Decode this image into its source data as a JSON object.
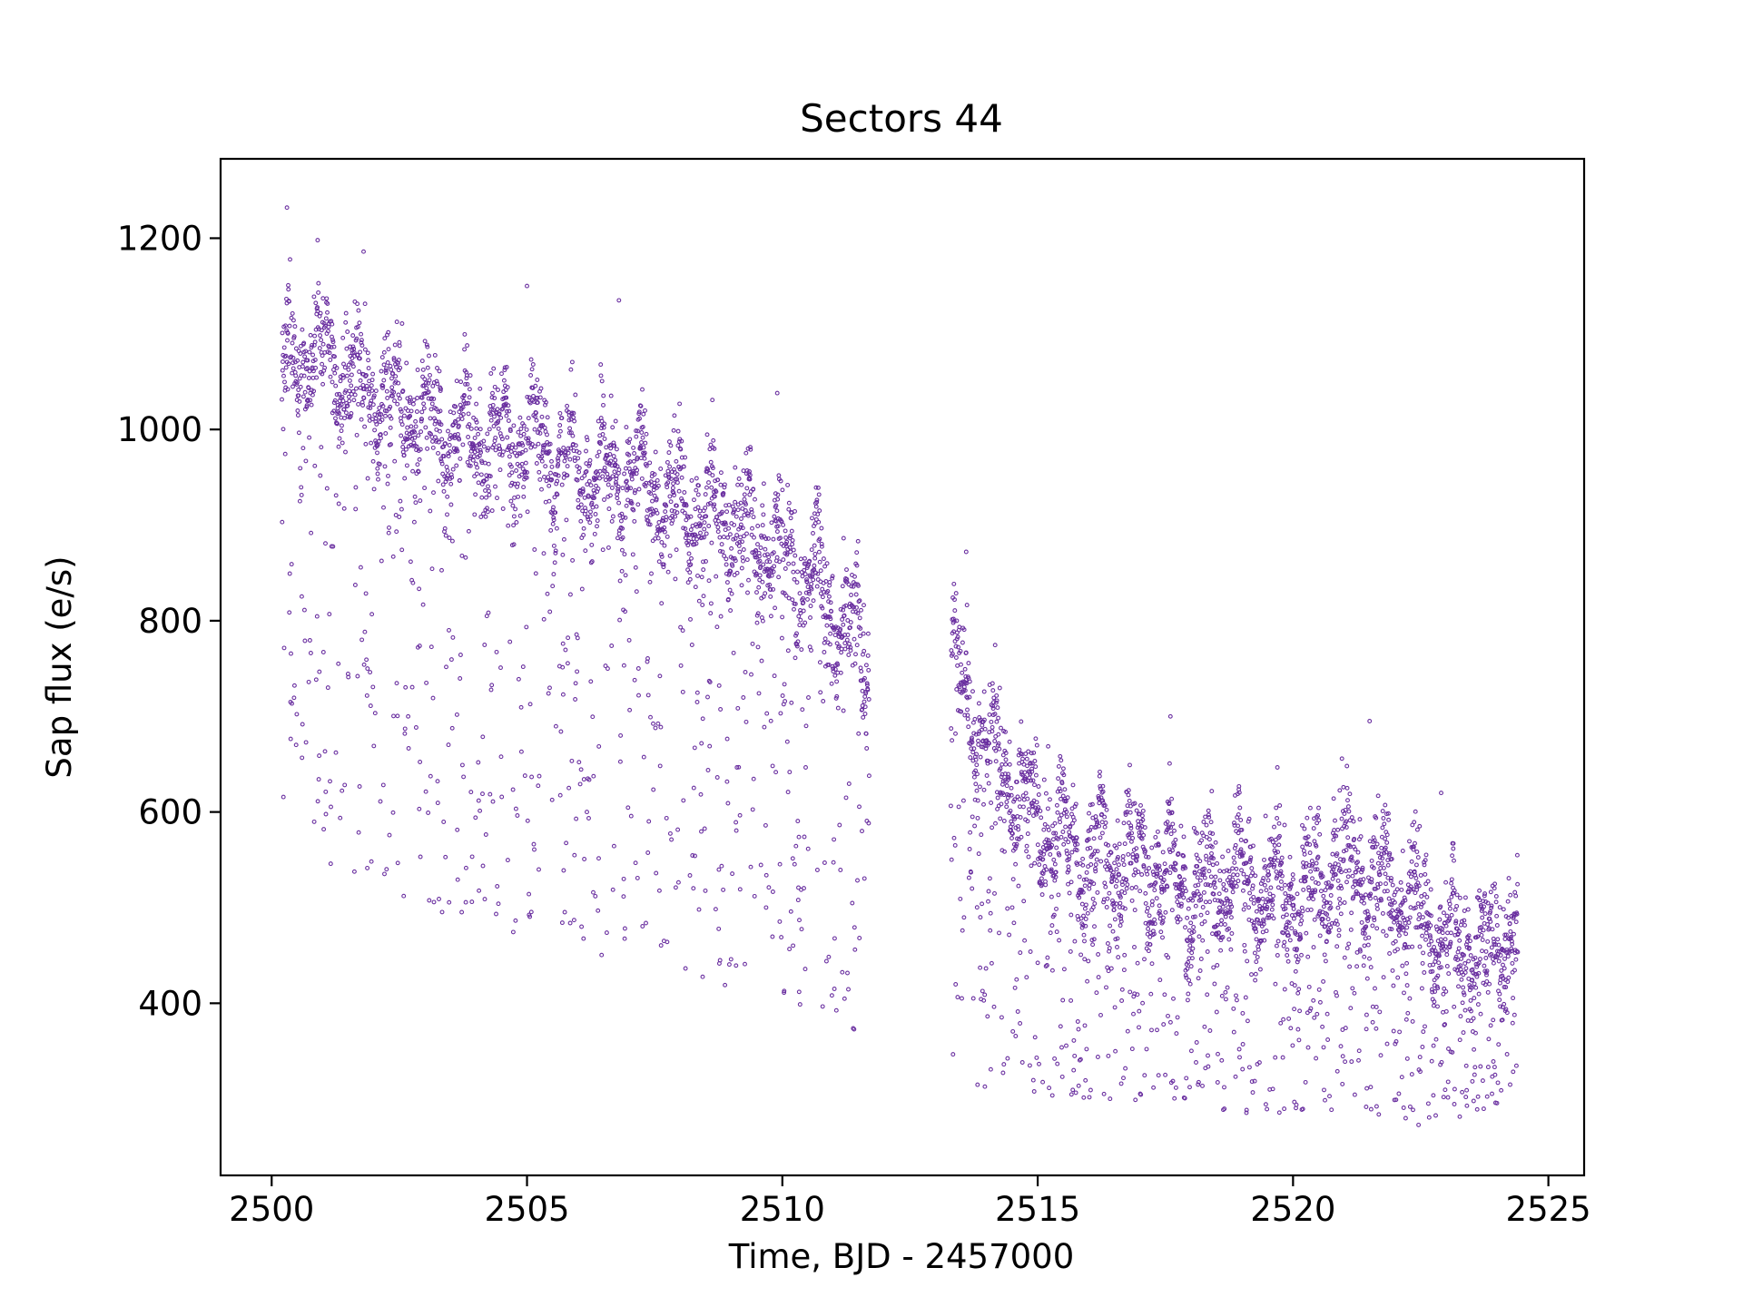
{
  "chart_data": {
    "type": "scatter",
    "title": "Sectors 44",
    "xlabel": "Time, BJD - 2457000",
    "ylabel": "Sap flux (e/s)",
    "xlim": [
      2499.0,
      2525.7
    ],
    "ylim": [
      220,
      1283
    ],
    "xticks": [
      2500,
      2505,
      2510,
      2515,
      2520,
      2525
    ],
    "yticks": [
      400,
      600,
      800,
      1000,
      1200
    ],
    "grid": false,
    "legend": "none",
    "colors": {
      "points": "#6a2fa0",
      "axes": "#000000",
      "background": "#ffffff"
    },
    "series": [
      {
        "segments": [
          {
            "x_start": 2500.2,
            "x_end": 2511.7,
            "trend": [
              [
                2500.2,
                1065
              ],
              [
                2501.0,
                1080
              ],
              [
                2502.0,
                1035
              ],
              [
                2503.0,
                1010
              ],
              [
                2504.0,
                985
              ],
              [
                2505.0,
                990
              ],
              [
                2506.0,
                955
              ],
              [
                2507.0,
                950
              ],
              [
                2508.0,
                920
              ],
              [
                2509.0,
                905
              ],
              [
                2510.0,
                870
              ],
              [
                2510.8,
                830
              ],
              [
                2511.7,
                760
              ]
            ],
            "scatter_low": [
              [
                2500.2,
                560
              ],
              [
                2503.0,
                500
              ],
              [
                2506.0,
                450
              ],
              [
                2508.0,
                430
              ],
              [
                2510.0,
                400
              ],
              [
                2511.7,
                355
              ]
            ]
          },
          {
            "x_start": 2513.3,
            "x_end": 2524.4,
            "trend": [
              [
                2513.3,
                760
              ],
              [
                2514.0,
                670
              ],
              [
                2515.0,
                590
              ],
              [
                2516.0,
                555
              ],
              [
                2517.0,
                545
              ],
              [
                2518.0,
                520
              ],
              [
                2519.0,
                535
              ],
              [
                2520.0,
                510
              ],
              [
                2521.0,
                545
              ],
              [
                2522.0,
                520
              ],
              [
                2523.0,
                470
              ],
              [
                2523.8,
                450
              ],
              [
                2524.4,
                495
              ]
            ],
            "scatter_low": [
              [
                2513.3,
                320
              ],
              [
                2515.0,
                300
              ],
              [
                2517.0,
                295
              ],
              [
                2519.0,
                285
              ],
              [
                2521.0,
                280
              ],
              [
                2523.0,
                270
              ],
              [
                2524.4,
                300
              ]
            ]
          }
        ],
        "outliers": [
          [
            2500.3,
            1232
          ],
          [
            2500.9,
            1198
          ],
          [
            2501.8,
            1186
          ],
          [
            2505.0,
            1150
          ],
          [
            2506.8,
            1135
          ],
          [
            2513.6,
            872
          ],
          [
            2509.9,
            1038
          ],
          [
            2517.6,
            700
          ],
          [
            2521.5,
            695
          ],
          [
            2522.9,
            620
          ]
        ]
      }
    ]
  }
}
